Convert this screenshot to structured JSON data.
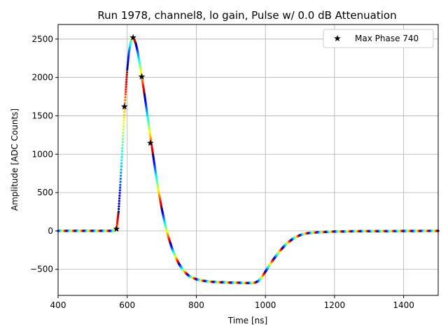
{
  "chart_data": {
    "type": "scatter",
    "title": "Run 1978, channel8, lo gain, Pulse w/ 0.0 dB Attenuation",
    "xlabel": "Time [ns]",
    "ylabel": "Amplitude [ADC Counts]",
    "xlim": [
      400,
      1500
    ],
    "ylim": [
      -840,
      2690
    ],
    "xticks": [
      400,
      600,
      800,
      1000,
      1200,
      1400
    ],
    "yticks": [
      -500,
      0,
      500,
      1000,
      1500,
      2000,
      2500
    ],
    "grid": true,
    "legend": {
      "placement": "top-right",
      "entries": [
        "Max Phase 740"
      ]
    },
    "series": [
      {
        "name": "",
        "style": "dense colored dots, jet colormap cycling by phase",
        "x_range": [
          400,
          1500
        ],
        "points": [
          [
            400,
            0
          ],
          [
            560,
            0
          ],
          [
            565,
            10
          ],
          [
            570,
            60
          ],
          [
            575,
            250
          ],
          [
            580,
            600
          ],
          [
            585,
            1000
          ],
          [
            590,
            1400
          ],
          [
            595,
            1780
          ],
          [
            600,
            2100
          ],
          [
            605,
            2330
          ],
          [
            610,
            2460
          ],
          [
            615,
            2510
          ],
          [
            620,
            2500
          ],
          [
            625,
            2440
          ],
          [
            630,
            2340
          ],
          [
            640,
            2080
          ],
          [
            650,
            1780
          ],
          [
            660,
            1460
          ],
          [
            670,
            1140
          ],
          [
            680,
            830
          ],
          [
            690,
            540
          ],
          [
            700,
            290
          ],
          [
            710,
            80
          ],
          [
            720,
            -90
          ],
          [
            730,
            -230
          ],
          [
            740,
            -340
          ],
          [
            750,
            -430
          ],
          [
            760,
            -500
          ],
          [
            770,
            -550
          ],
          [
            780,
            -590
          ],
          [
            800,
            -630
          ],
          [
            820,
            -650
          ],
          [
            850,
            -665
          ],
          [
            900,
            -673
          ],
          [
            950,
            -678
          ],
          [
            970,
            -675
          ],
          [
            980,
            -650
          ],
          [
            990,
            -600
          ],
          [
            1000,
            -530
          ],
          [
            1020,
            -390
          ],
          [
            1040,
            -270
          ],
          [
            1060,
            -170
          ],
          [
            1080,
            -100
          ],
          [
            1100,
            -55
          ],
          [
            1120,
            -30
          ],
          [
            1150,
            -18
          ],
          [
            1200,
            -8
          ],
          [
            1300,
            -2
          ],
          [
            1500,
            0
          ]
        ]
      },
      {
        "name": "Max Phase 740",
        "marker": "star",
        "color": "#000000",
        "points": [
          [
            569,
            25
          ],
          [
            592,
            1620
          ],
          [
            617,
            2520
          ],
          [
            642,
            2010
          ],
          [
            667,
            1145
          ]
        ]
      }
    ]
  }
}
